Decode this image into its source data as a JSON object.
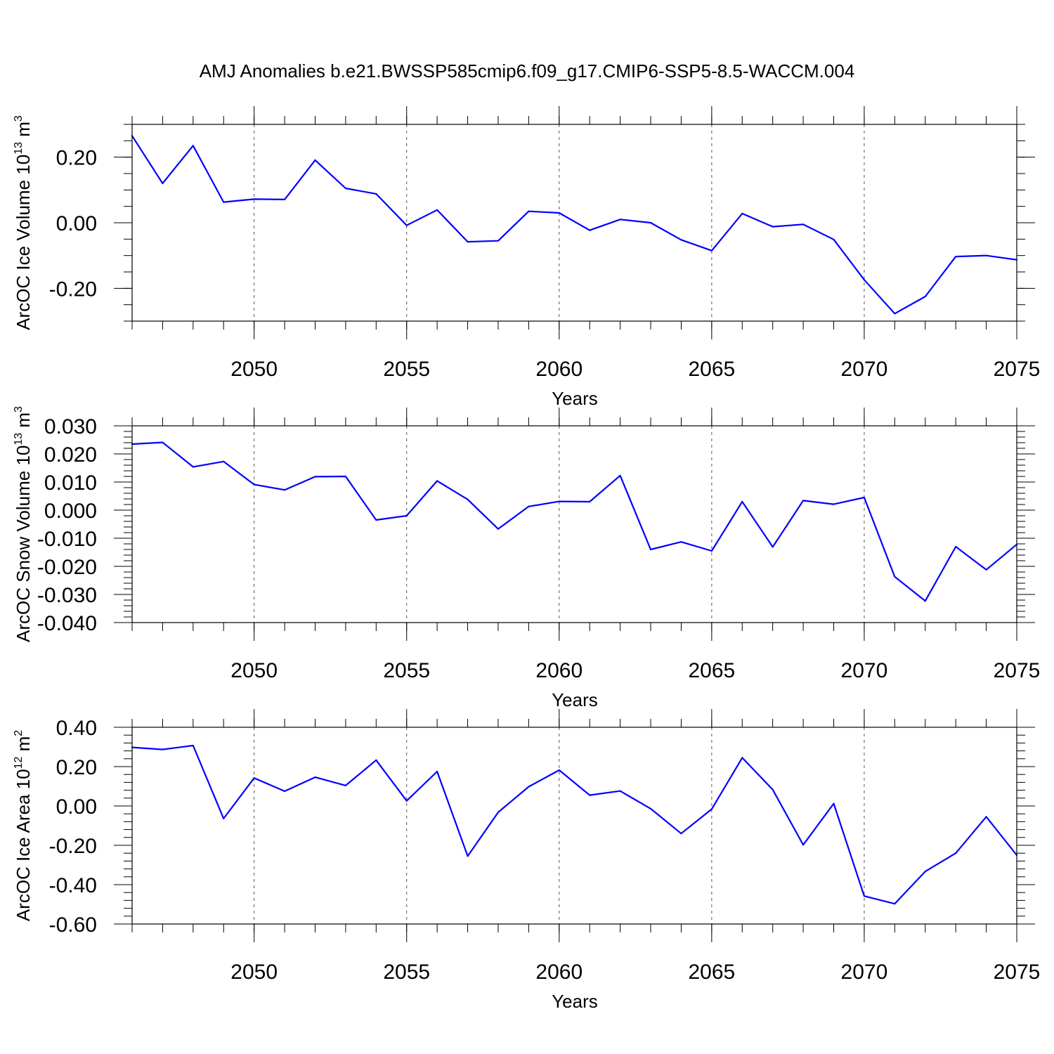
{
  "figure": {
    "title": "AMJ Anomalies b.e21.BWSSP585cmip6.f09_g17.CMIP6-SSP5-8.5-WACCM.004"
  },
  "colors": {
    "series": "#0000ff",
    "grid": "#555555",
    "frame": "#000000"
  },
  "chart_data": [
    {
      "type": "line",
      "title": "AMJ Anomalies b.e21.BWSSP585cmip6.f09_g17.CMIP6-SSP5-8.5-WACCM.004",
      "xlabel": "Years",
      "ylabel_main": "ArcOC Ice Volume 10",
      "ylabel_sup": "13",
      "ylabel_unit": " m",
      "ylabel_unit_sup": "3",
      "xlim": [
        2046,
        2075
      ],
      "ylim": [
        -0.3,
        0.3
      ],
      "xticks": [
        2050,
        2055,
        2060,
        2065,
        2070,
        2075
      ],
      "xtick_labels": [
        "2050",
        "2055",
        "2060",
        "2065",
        "2070",
        "2075"
      ],
      "xminor_step": 1,
      "yticks": [
        -0.2,
        0.0,
        0.2
      ],
      "ytick_labels": [
        "-0.20",
        "0.00",
        "0.20"
      ],
      "yminor_step": 0.05,
      "grid": "vertical dashed at major x ticks",
      "x": [
        2046,
        2047,
        2048,
        2049,
        2050,
        2051,
        2052,
        2053,
        2054,
        2055,
        2056,
        2057,
        2058,
        2059,
        2060,
        2061,
        2062,
        2063,
        2064,
        2065,
        2066,
        2067,
        2068,
        2069,
        2070,
        2071,
        2072,
        2073,
        2074,
        2075
      ],
      "values": [
        0.265,
        0.12,
        0.235,
        0.063,
        0.072,
        0.071,
        0.191,
        0.105,
        0.088,
        -0.008,
        0.039,
        -0.058,
        -0.055,
        0.035,
        0.03,
        -0.023,
        0.01,
        0.0,
        -0.052,
        -0.085,
        0.028,
        -0.012,
        -0.005,
        -0.051,
        -0.174,
        -0.277,
        -0.225,
        -0.103,
        -0.1,
        -0.113
      ]
    },
    {
      "type": "line",
      "xlabel": "Years",
      "ylabel_main": "ArcOC Snow Volume 10",
      "ylabel_sup": "13",
      "ylabel_unit": " m",
      "ylabel_unit_sup": "3",
      "xlim": [
        2046,
        2075
      ],
      "ylim": [
        -0.04,
        0.03
      ],
      "xticks": [
        2050,
        2055,
        2060,
        2065,
        2070,
        2075
      ],
      "xtick_labels": [
        "2050",
        "2055",
        "2060",
        "2065",
        "2070",
        "2075"
      ],
      "xminor_step": 1,
      "yticks": [
        -0.04,
        -0.03,
        -0.02,
        -0.01,
        0.0,
        0.01,
        0.02,
        0.03
      ],
      "ytick_labels": [
        "-0.040",
        "-0.030",
        "-0.020",
        "-0.010",
        "0.000",
        "0.010",
        "0.020",
        "0.030"
      ],
      "yminor_step": 0.002,
      "grid": "vertical dashed at major x ticks",
      "x": [
        2046,
        2047,
        2048,
        2049,
        2050,
        2051,
        2052,
        2053,
        2054,
        2055,
        2056,
        2057,
        2058,
        2059,
        2060,
        2061,
        2062,
        2063,
        2064,
        2065,
        2066,
        2067,
        2068,
        2069,
        2070,
        2071,
        2072,
        2073,
        2074,
        2075
      ],
      "values": [
        0.0235,
        0.0241,
        0.0154,
        0.0173,
        0.0091,
        0.0072,
        0.0119,
        0.012,
        -0.0035,
        -0.002,
        0.0104,
        0.0038,
        -0.0067,
        0.0013,
        0.0031,
        0.003,
        0.0123,
        -0.014,
        -0.0113,
        -0.0145,
        0.003,
        -0.0131,
        0.0034,
        0.0021,
        0.0045,
        -0.0237,
        -0.0323,
        -0.013,
        -0.0212,
        -0.0122
      ]
    },
    {
      "type": "line",
      "xlabel": "Years",
      "ylabel_main": "ArcOC Ice Area 10",
      "ylabel_sup": "12",
      "ylabel_unit": " m",
      "ylabel_unit_sup": "2",
      "xlim": [
        2046,
        2075
      ],
      "ylim": [
        -0.6,
        0.4
      ],
      "xticks": [
        2050,
        2055,
        2060,
        2065,
        2070,
        2075
      ],
      "xtick_labels": [
        "2050",
        "2055",
        "2060",
        "2065",
        "2070",
        "2075"
      ],
      "xminor_step": 1,
      "yticks": [
        -0.6,
        -0.4,
        -0.2,
        0.0,
        0.2,
        0.4
      ],
      "ytick_labels": [
        "-0.60",
        "-0.40",
        "-0.20",
        "0.00",
        "0.20",
        "0.40"
      ],
      "yminor_step": 0.04,
      "grid": "vertical dashed at major x ticks",
      "x": [
        2046,
        2047,
        2048,
        2049,
        2050,
        2051,
        2052,
        2053,
        2054,
        2055,
        2056,
        2057,
        2058,
        2059,
        2060,
        2061,
        2062,
        2063,
        2064,
        2065,
        2066,
        2067,
        2068,
        2069,
        2070,
        2071,
        2072,
        2073,
        2074,
        2075
      ],
      "values": [
        0.298,
        0.287,
        0.307,
        -0.064,
        0.142,
        0.075,
        0.146,
        0.104,
        0.233,
        0.026,
        0.175,
        -0.255,
        -0.032,
        0.098,
        0.182,
        0.055,
        0.076,
        -0.014,
        -0.14,
        -0.016,
        0.245,
        0.083,
        -0.198,
        0.012,
        -0.458,
        -0.497,
        -0.333,
        -0.24,
        -0.055,
        -0.25
      ]
    }
  ]
}
